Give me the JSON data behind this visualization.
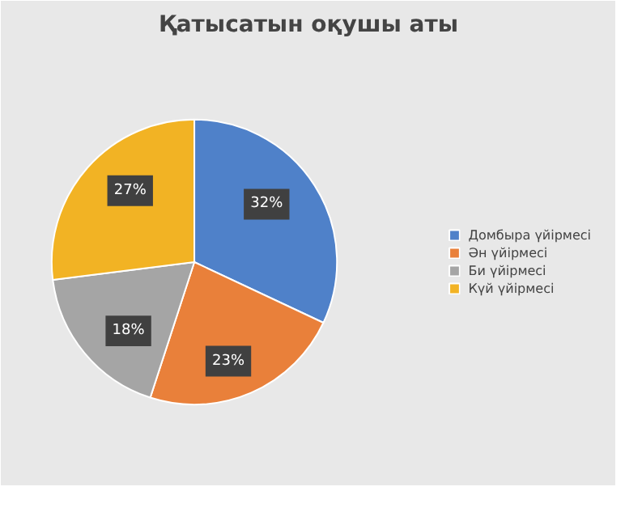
{
  "chart_data": {
    "type": "pie",
    "title": "Қатысатын оқушы аты",
    "categories": [
      "Домбыра үйірмесі",
      "Ән үйірмесі",
      "Би үйірмесі",
      "Күй үйірмесі"
    ],
    "values": [
      32,
      23,
      18,
      27
    ],
    "colors": [
      "#4f81c9",
      "#e9803a",
      "#a5a5a5",
      "#f2b324"
    ],
    "value_labels": [
      "32%",
      "23%",
      "18%",
      "27%"
    ],
    "legend": "right"
  }
}
